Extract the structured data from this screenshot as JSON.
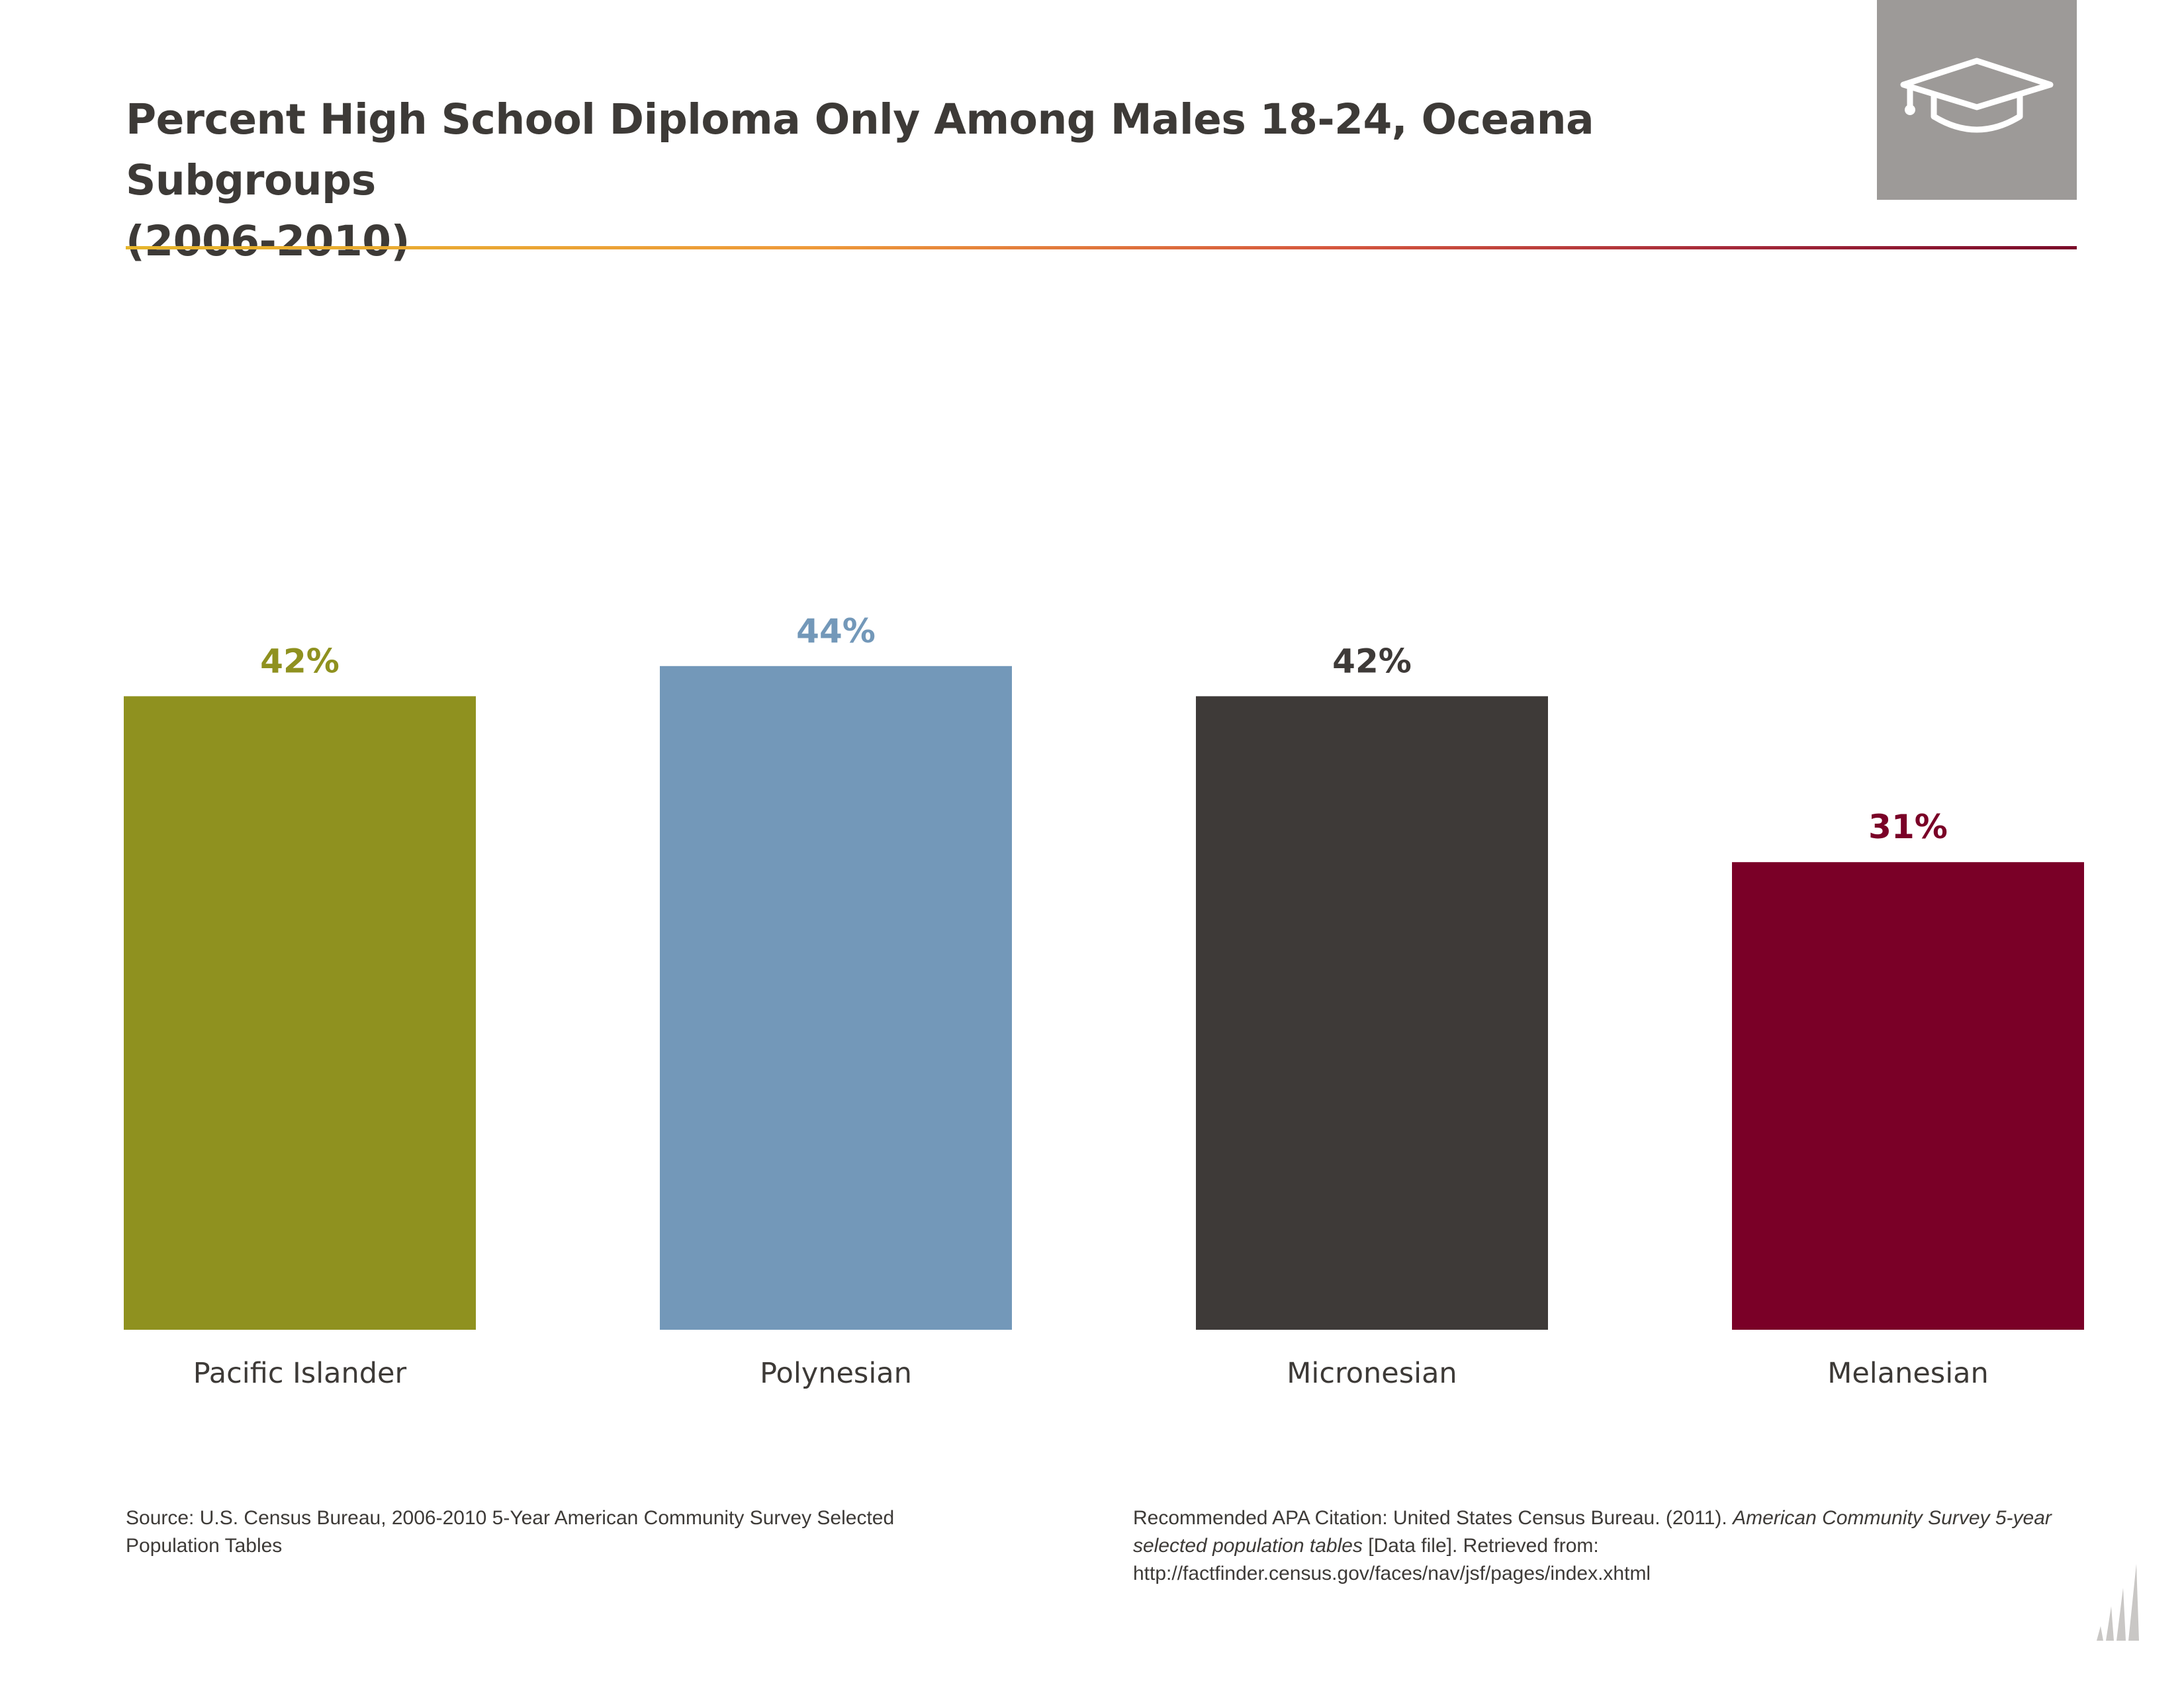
{
  "header": {
    "title_line1": "Percent High School Diploma Only Among Males 18-24, Oceana Subgroups",
    "title_line2": "(2006-2010)",
    "icon": "graduation-cap-icon"
  },
  "chart_data": {
    "type": "bar",
    "title": "Percent High School Diploma Only Among Males 18-24, Oceana Subgroups (2006-2010)",
    "categories": [
      "Pacific Islander",
      "Polynesian",
      "Micronesian",
      "Melanesian"
    ],
    "values": [
      42,
      44,
      42,
      31
    ],
    "value_labels": [
      "42%",
      "44%",
      "42%",
      "31%"
    ],
    "colors": [
      "#8f911f",
      "#7398b9",
      "#3e3a38",
      "#7a0027"
    ],
    "ylim": [
      0,
      100
    ],
    "grid": false,
    "legend": "none"
  },
  "footer": {
    "source": "Source: U.S. Census Bureau, 2006-2010 5-Year American Community Survey Selected Population Tables",
    "citation_prefix": "Recommended APA Citation: United States Census Bureau. (2011). ",
    "citation_italic": "American Community Survey 5-year selected population tables",
    "citation_suffix": " [Data file]. Retrieved from: http://factfinder.census.gov/faces/nav/jsf/pages/index.xhtml"
  },
  "colors": {
    "title_text": "#3d3a37",
    "icon_box": "#9d9a98",
    "rule_start": "#e6b52c",
    "rule_end": "#7a0a2a"
  }
}
